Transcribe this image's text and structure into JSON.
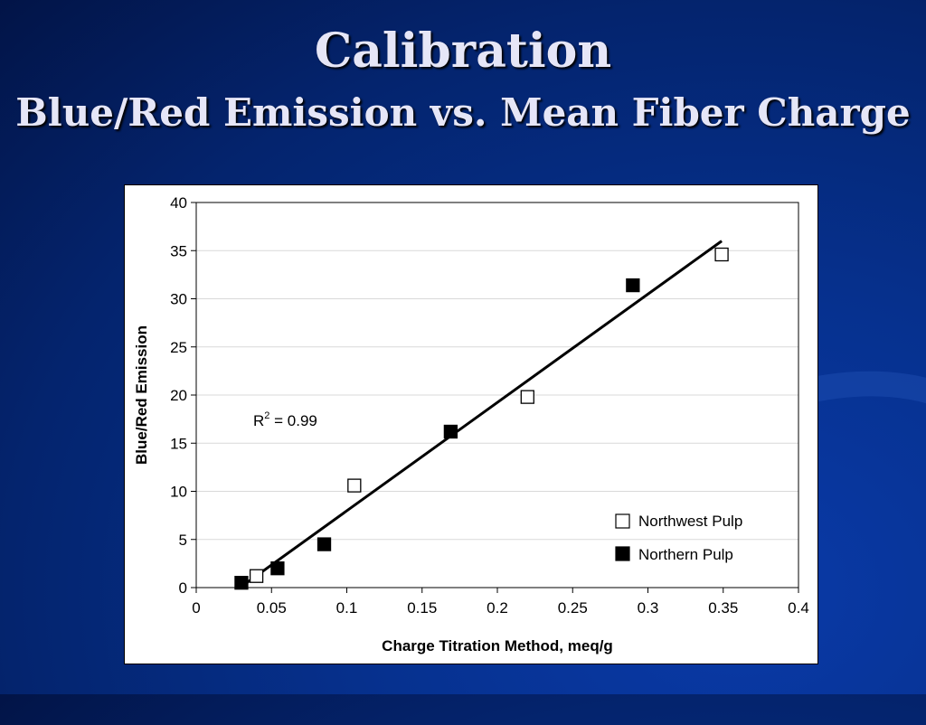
{
  "slide": {
    "title": "Calibration",
    "subtitle": "Blue/Red Emission vs. Mean Fiber Charge"
  },
  "chart_data": {
    "type": "scatter",
    "xlabel": "Charge Titration Method, meq/g",
    "ylabel": "Blue/Red Emission",
    "xlim": [
      0,
      0.4
    ],
    "ylim": [
      0,
      40
    ],
    "x_ticks": [
      "0",
      "0.05",
      "0.1",
      "0.15",
      "0.2",
      "0.25",
      "0.3",
      "0.35",
      "0.4"
    ],
    "y_ticks": [
      "0",
      "5",
      "10",
      "15",
      "20",
      "25",
      "30",
      "35",
      "40"
    ],
    "grid": "horizontal",
    "legend_position": "bottom-right",
    "series": [
      {
        "name": "Northwest Pulp",
        "marker": "open-square",
        "points": [
          [
            0.04,
            1.2
          ],
          [
            0.105,
            10.6
          ],
          [
            0.22,
            19.8
          ],
          [
            0.349,
            34.6
          ]
        ]
      },
      {
        "name": "Northern Pulp",
        "marker": "filled-square",
        "points": [
          [
            0.03,
            0.5
          ],
          [
            0.054,
            2.0
          ],
          [
            0.085,
            4.5
          ],
          [
            0.169,
            16.2
          ],
          [
            0.29,
            31.4
          ]
        ]
      }
    ],
    "trendline": {
      "type": "linear",
      "from": [
        0.03,
        0.1
      ],
      "to": [
        0.349,
        36.0
      ]
    },
    "annotation": {
      "r_label": "R",
      "r_superscript": "2",
      "r_value": " = 0.99"
    },
    "colors": {
      "marker": "#000000",
      "line": "#000000",
      "grid": "#d9d9d9"
    }
  }
}
